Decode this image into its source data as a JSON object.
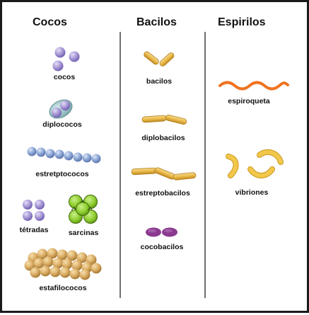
{
  "headers": {
    "cocos": "Cocos",
    "bacilos": "Bacilos",
    "espirilos": "Espirilos"
  },
  "labels": {
    "cocos": "cocos",
    "diplococos": "diplococos",
    "estreptococos": "estretptococos",
    "tetradas": "tétradas",
    "sarcinas": "sarcinas",
    "estafilococos": "estafilococos",
    "bacilos": "bacilos",
    "diplobacilos": "diplobacilos",
    "estreptobacilos": "estreptobacilos",
    "cocobacilos": "cocobacilos",
    "espiroqueta": "espiroqueta",
    "vibriones": "vibriones"
  },
  "colors": {
    "frame_border": "#1a1a1a",
    "divider": "#222222",
    "coccus_lavender": "#a99ad6",
    "diplococcus_capsule": "#8fb9bd",
    "streptococcus_blue": "#8ea8d6",
    "sarcina_green": "#8fcd2e",
    "staphylococcus_tan": "#ddb069",
    "bacillus_gold": "#e8b646",
    "coccobacillus_purple": "#8a3a8f",
    "spirochete_orange": "#f0731f",
    "vibrio_yellow": "#f1c84a"
  }
}
